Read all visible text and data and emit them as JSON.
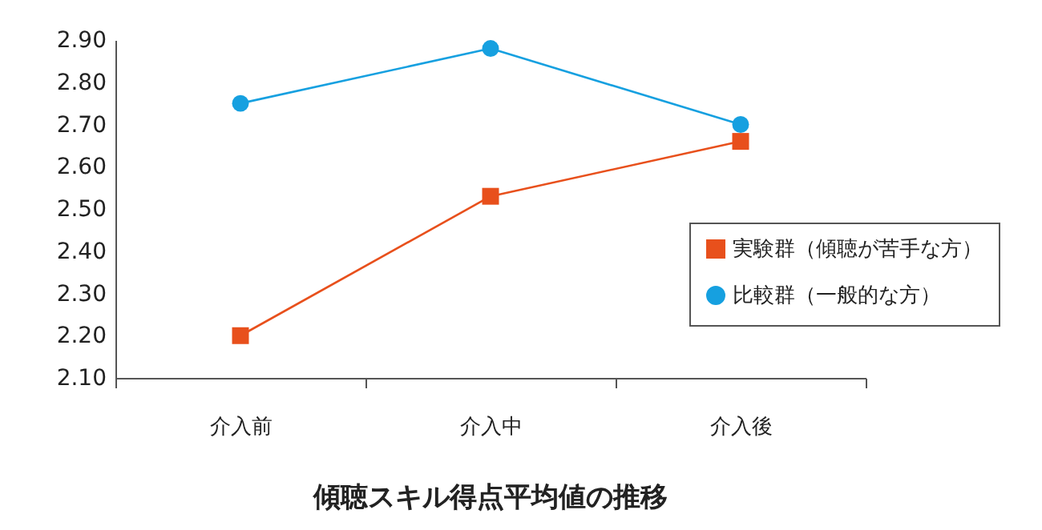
{
  "chart_data": {
    "type": "line",
    "title": "傾聴スキル得点平均値の推移",
    "categories": [
      "介入前",
      "介入中",
      "介入後"
    ],
    "series": [
      {
        "name": "実験群（傾聴が苦手な方）",
        "color": "#e8501c",
        "marker": "square",
        "values": [
          2.2,
          2.53,
          2.66
        ]
      },
      {
        "name": "比較群（一般的な方）",
        "color": "#16a0e0",
        "marker": "circle",
        "values": [
          2.75,
          2.88,
          2.7
        ]
      }
    ],
    "ylim": [
      2.1,
      2.9
    ],
    "yticks": [
      {
        "value": 2.1,
        "label": "2.10"
      },
      {
        "value": 2.2,
        "label": "2.20"
      },
      {
        "value": 2.3,
        "label": "2.30"
      },
      {
        "value": 2.4,
        "label": "2.40"
      },
      {
        "value": 2.5,
        "label": "2.50"
      },
      {
        "value": 2.6,
        "label": "2.60"
      },
      {
        "value": 2.7,
        "label": "2.70"
      },
      {
        "value": 2.8,
        "label": "2.80"
      },
      {
        "value": 2.9,
        "label": "2.90"
      }
    ],
    "grid": false,
    "legend": "right",
    "line_style": "solid"
  }
}
